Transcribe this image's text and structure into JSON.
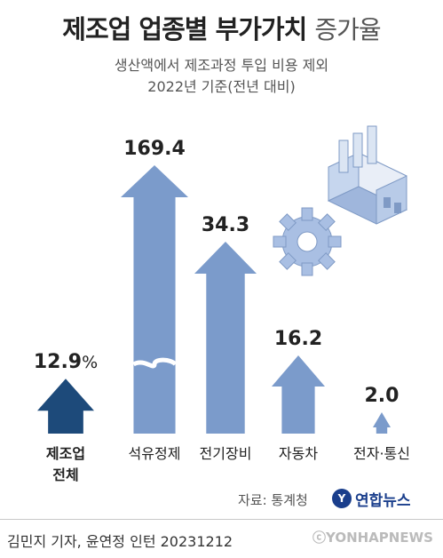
{
  "header": {
    "title_bold": "제조업 업종별 부가가치",
    "title_light": "증가율",
    "subtitle_1": "생산액에서 제조과정 투입 비용 제외",
    "subtitle_2": "2022년 기준(전년 대비)"
  },
  "chart_data": {
    "type": "bar",
    "unit": "%",
    "categories": [
      "제조업 전체",
      "석유정제",
      "전기장비",
      "자동차",
      "전자·통신"
    ],
    "category_lines": [
      [
        "제조업",
        "전체"
      ],
      [
        "석유정제"
      ],
      [
        "전기장비"
      ],
      [
        "자동차"
      ],
      [
        "전자·통신"
      ]
    ],
    "values": [
      12.9,
      169.4,
      34.3,
      16.2,
      2.0
    ],
    "value_labels": [
      "12.9",
      "169.4",
      "34.3",
      "16.2",
      "2.0"
    ],
    "percent_sign": "%",
    "broken_axis_category": "석유정제",
    "colors": {
      "highlight": "#1d4a7a",
      "default": "#7b9bcb",
      "stroke": "#a9bde0"
    }
  },
  "footer": {
    "source": "자료: 통계청",
    "logo_mark": "Y",
    "logo_text": "연합뉴스",
    "credit": "김민지 기자, 윤연정 인턴  20231212",
    "watermark": "ⓒYONHAPNEWS"
  },
  "icons": [
    "factory-icon",
    "gear-icon",
    "yonhap-logo-icon"
  ]
}
